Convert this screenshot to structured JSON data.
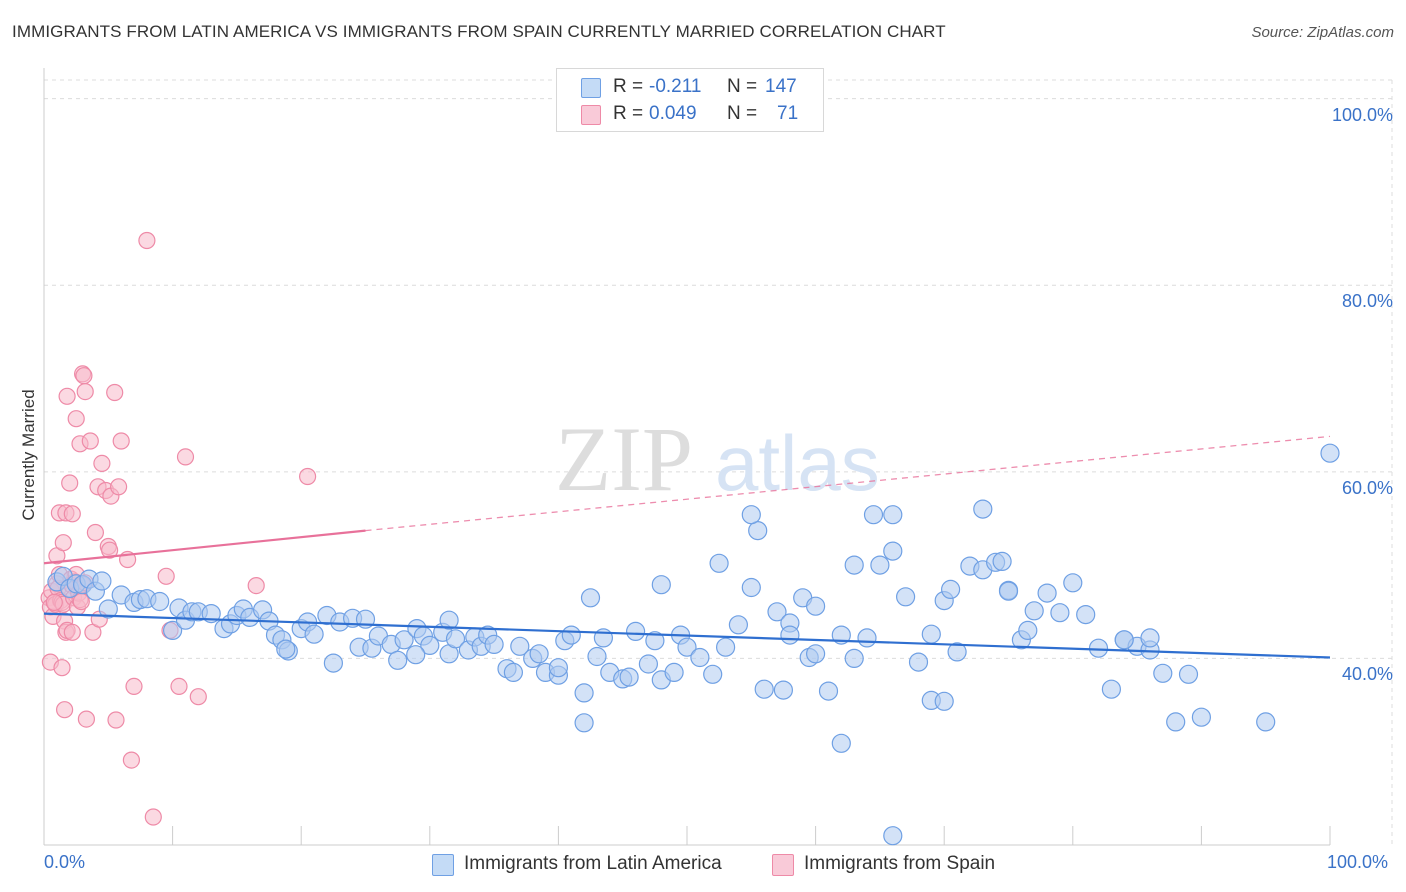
{
  "title": "IMMIGRANTS FROM LATIN AMERICA VS IMMIGRANTS FROM SPAIN CURRENTLY MARRIED CORRELATION CHART",
  "source": "Source: ZipAtlas.com",
  "watermark": "ZIPatlas",
  "legend": {
    "rows": [
      {
        "r_label": "R =",
        "r_value": "-0.211",
        "n_label": "N =",
        "n_value": "147",
        "color": "#6fa0e4"
      },
      {
        "r_label": "R =",
        "r_value": "0.049",
        "n_label": "N =",
        "n_value": "71",
        "color": "#f08aa8"
      }
    ]
  },
  "colors": {
    "blue_fill": "#aecbf1",
    "blue_stroke": "#6fa0e4",
    "blue_line": "#2f6fd0",
    "pink_fill": "#f7b9cb",
    "pink_stroke": "#ee8aa7",
    "pink_line": "#e8719a",
    "axis_label": "#3a72c8",
    "grid": "#dcdcdc"
  },
  "chart_data": {
    "type": "scatter",
    "ylabel": "Currently Married",
    "xlim": [
      0,
      100
    ],
    "ylim": [
      20,
      102
    ],
    "x_tick_labels": [
      "0.0%",
      "100.0%"
    ],
    "y_ticks": [
      40,
      60,
      80,
      100
    ],
    "y_tick_labels": [
      "40.0%",
      "60.0%",
      "80.0%",
      "100.0%"
    ],
    "grid": true,
    "legend_position": "top-center",
    "series": [
      {
        "name": "Immigrants from Latin America",
        "color": "#6fa0e4",
        "trend": {
          "x": [
            0,
            100
          ],
          "y": [
            44.8,
            40.1
          ],
          "style": "solid"
        },
        "points": [
          [
            1,
            48.2
          ],
          [
            1.5,
            48.8
          ],
          [
            2,
            47.5
          ],
          [
            2.5,
            48.0
          ],
          [
            3,
            47.9
          ],
          [
            3.5,
            48.5
          ],
          [
            4,
            47.2
          ],
          [
            4.5,
            48.3
          ],
          [
            5,
            45.3
          ],
          [
            6,
            46.8
          ],
          [
            7,
            46.0
          ],
          [
            7.5,
            46.3
          ],
          [
            8,
            46.4
          ],
          [
            9,
            46.1
          ],
          [
            10,
            43.0
          ],
          [
            10.5,
            45.4
          ],
          [
            11,
            44.1
          ],
          [
            11.5,
            45.0
          ],
          [
            12,
            45.0
          ],
          [
            13,
            44.8
          ],
          [
            14,
            43.2
          ],
          [
            14.5,
            43.7
          ],
          [
            15,
            44.6
          ],
          [
            15.5,
            45.3
          ],
          [
            16,
            44.4
          ],
          [
            17,
            45.2
          ],
          [
            17.5,
            44.0
          ],
          [
            18,
            42.5
          ],
          [
            18.5,
            42.0
          ],
          [
            19,
            40.8
          ],
          [
            20,
            43.2
          ],
          [
            20.5,
            43.9
          ],
          [
            21,
            42.6
          ],
          [
            22,
            44.6
          ],
          [
            22.5,
            39.5
          ],
          [
            23,
            43.9
          ],
          [
            24,
            44.3
          ],
          [
            24.5,
            41.2
          ],
          [
            25,
            44.2
          ],
          [
            25.5,
            41.1
          ],
          [
            26,
            42.4
          ],
          [
            27,
            41.5
          ],
          [
            27.5,
            39.8
          ],
          [
            28,
            42.0
          ],
          [
            29,
            43.2
          ],
          [
            29.5,
            42.4
          ],
          [
            30,
            41.4
          ],
          [
            31,
            42.8
          ],
          [
            31.5,
            40.5
          ],
          [
            32,
            42.1
          ],
          [
            33,
            40.9
          ],
          [
            33.5,
            42.3
          ],
          [
            34,
            41.3
          ],
          [
            34.5,
            42.5
          ],
          [
            35,
            41.5
          ],
          [
            36,
            38.9
          ],
          [
            36.5,
            38.5
          ],
          [
            37,
            41.3
          ],
          [
            38,
            40.0
          ],
          [
            38.5,
            40.5
          ],
          [
            39,
            38.5
          ],
          [
            40,
            38.2
          ],
          [
            40.5,
            41.9
          ],
          [
            41,
            42.5
          ],
          [
            42,
            36.3
          ],
          [
            43,
            40.2
          ],
          [
            43.5,
            42.2
          ],
          [
            44,
            38.5
          ],
          [
            45,
            37.8
          ],
          [
            46,
            42.9
          ],
          [
            47,
            39.4
          ],
          [
            47.5,
            41.9
          ],
          [
            48,
            37.7
          ],
          [
            49,
            38.5
          ],
          [
            49.5,
            42.5
          ],
          [
            50,
            41.2
          ],
          [
            51,
            40.1
          ],
          [
            52,
            38.3
          ],
          [
            53,
            41.2
          ],
          [
            54,
            43.6
          ],
          [
            55,
            47.6
          ],
          [
            56,
            36.7
          ],
          [
            57,
            45.0
          ],
          [
            58,
            43.8
          ],
          [
            59,
            46.5
          ],
          [
            60,
            45.6
          ],
          [
            61,
            36.5
          ],
          [
            62,
            42.5
          ],
          [
            63,
            40.0
          ],
          [
            64,
            42.2
          ],
          [
            65,
            50.0
          ],
          [
            66,
            51.5
          ],
          [
            67,
            46.6
          ],
          [
            68,
            39.6
          ],
          [
            69,
            42.6
          ],
          [
            70,
            46.2
          ],
          [
            70.5,
            47.4
          ],
          [
            71,
            40.7
          ],
          [
            72,
            49.9
          ],
          [
            73,
            49.5
          ],
          [
            74,
            50.3
          ],
          [
            75,
            47.3
          ],
          [
            76,
            42.0
          ],
          [
            77,
            45.1
          ],
          [
            78,
            47.0
          ],
          [
            79,
            44.9
          ],
          [
            80,
            48.1
          ],
          [
            81,
            44.7
          ],
          [
            82,
            41.1
          ],
          [
            83,
            36.7
          ],
          [
            84,
            42.0
          ],
          [
            85,
            41.3
          ],
          [
            86,
            40.9
          ],
          [
            87,
            38.4
          ],
          [
            88,
            33.2
          ],
          [
            89,
            38.3
          ],
          [
            90,
            33.7
          ],
          [
            95,
            33.2
          ],
          [
            100,
            62.0
          ],
          [
            52.5,
            50.2
          ],
          [
            55.5,
            53.7
          ],
          [
            63,
            50.0
          ],
          [
            66,
            55.4
          ],
          [
            55,
            55.4
          ],
          [
            42,
            33.1
          ],
          [
            45.5,
            38.0
          ],
          [
            58,
            42.5
          ],
          [
            59.5,
            40.1
          ],
          [
            62,
            30.9
          ],
          [
            64.5,
            55.4
          ],
          [
            69,
            35.5
          ],
          [
            70,
            35.4
          ],
          [
            73,
            56.0
          ],
          [
            74.5,
            50.4
          ],
          [
            76.5,
            43.0
          ],
          [
            75,
            47.2
          ],
          [
            48,
            47.9
          ],
          [
            42.5,
            46.5
          ],
          [
            40,
            39.0
          ],
          [
            60,
            40.5
          ],
          [
            66,
            21.0
          ],
          [
            84,
            42.0
          ],
          [
            86,
            42.2
          ],
          [
            31.5,
            44.1
          ],
          [
            18.8,
            41.0
          ],
          [
            28.9,
            40.4
          ],
          [
            57.5,
            36.6
          ]
        ]
      },
      {
        "name": "Immigrants from Spain",
        "color": "#ee8aa7",
        "trend": {
          "x": [
            0,
            25,
            100
          ],
          "y": [
            50.2,
            53.7,
            63.8
          ],
          "style": "solid-then-dashed"
        },
        "points": [
          [
            0.4,
            46.5
          ],
          [
            0.5,
            45.5
          ],
          [
            0.6,
            47.2
          ],
          [
            0.7,
            44.5
          ],
          [
            0.8,
            46.0
          ],
          [
            0.9,
            45.8
          ],
          [
            1.0,
            48.0
          ],
          [
            1.1,
            47.5
          ],
          [
            1.2,
            49.0
          ],
          [
            1.3,
            46.2
          ],
          [
            1.4,
            46.0
          ],
          [
            1.5,
            45.8
          ],
          [
            1.6,
            44.0
          ],
          [
            1.7,
            42.8
          ],
          [
            1.8,
            43.0
          ],
          [
            2.0,
            47.3
          ],
          [
            2.1,
            48.5
          ],
          [
            2.2,
            47.8
          ],
          [
            2.3,
            46.5
          ],
          [
            2.4,
            48.2
          ],
          [
            2.5,
            49.0
          ],
          [
            2.6,
            45.5
          ],
          [
            2.7,
            47.0
          ],
          [
            2.8,
            46.3
          ],
          [
            3.0,
            47.9
          ],
          [
            3.2,
            48.1
          ],
          [
            0.5,
            39.6
          ],
          [
            1.0,
            51.0
          ],
          [
            1.2,
            55.6
          ],
          [
            1.5,
            52.4
          ],
          [
            1.7,
            55.6
          ],
          [
            2.0,
            58.8
          ],
          [
            2.2,
            55.5
          ],
          [
            2.5,
            65.7
          ],
          [
            2.8,
            63.0
          ],
          [
            3.0,
            70.5
          ],
          [
            3.1,
            70.3
          ],
          [
            3.2,
            68.6
          ],
          [
            1.6,
            34.5
          ],
          [
            3.3,
            33.5
          ],
          [
            3.6,
            63.3
          ],
          [
            4.0,
            53.5
          ],
          [
            4.2,
            58.4
          ],
          [
            4.5,
            60.9
          ],
          [
            4.8,
            58.0
          ],
          [
            5.0,
            52.0
          ],
          [
            5.1,
            51.6
          ],
          [
            5.2,
            57.4
          ],
          [
            5.5,
            68.5
          ],
          [
            5.6,
            33.4
          ],
          [
            5.8,
            58.4
          ],
          [
            6.0,
            63.3
          ],
          [
            6.5,
            50.6
          ],
          [
            6.8,
            29.1
          ],
          [
            7.0,
            37.0
          ],
          [
            8.0,
            84.8
          ],
          [
            8.5,
            23.0
          ],
          [
            9.5,
            48.8
          ],
          [
            9.8,
            43.0
          ],
          [
            10.5,
            37.0
          ],
          [
            11.0,
            61.6
          ],
          [
            12.0,
            35.9
          ],
          [
            16.5,
            47.8
          ],
          [
            20.5,
            59.5
          ],
          [
            1.8,
            68.1
          ],
          [
            3.8,
            42.8
          ],
          [
            4.3,
            44.2
          ],
          [
            2.2,
            42.8
          ],
          [
            1.4,
            39.0
          ],
          [
            0.8,
            46.0
          ],
          [
            2.9,
            46.1
          ]
        ]
      }
    ]
  }
}
